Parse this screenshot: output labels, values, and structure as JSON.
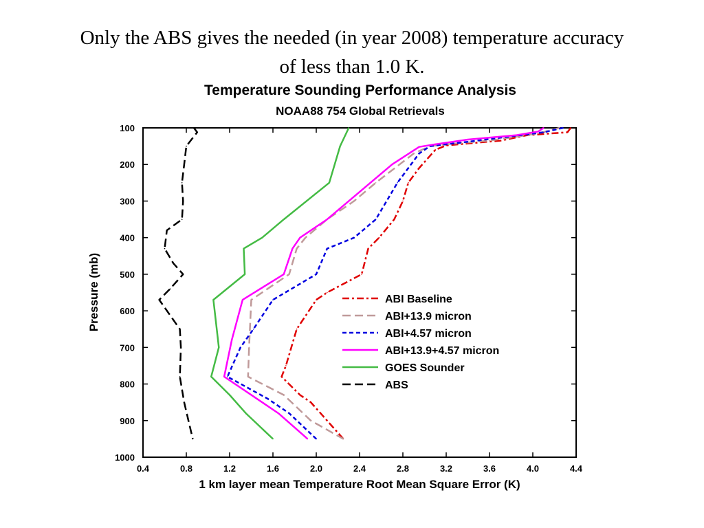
{
  "slide": {
    "title_line1": "Only the ABS gives the needed (in year 2008) temperature accuracy",
    "title_line2": "of less than 1.0 K."
  },
  "chart_data": {
    "type": "line",
    "title": "Temperature Sounding Performance Analysis",
    "subtitle": "NOAA88 754 Global Retrievals",
    "xlabel": "1 km layer mean Temperature Root Mean Square Error (K)",
    "ylabel": "Pressure (mb)",
    "xlim": [
      0.4,
      4.4
    ],
    "ylim": [
      100,
      1000
    ],
    "y_inverted": true,
    "x_ticks": [
      "0.4",
      "0.8",
      "1.2",
      "1.6",
      "2.0",
      "2.4",
      "2.8",
      "3.2",
      "3.6",
      "4.0",
      "4.4"
    ],
    "y_ticks": [
      "100",
      "200",
      "300",
      "400",
      "500",
      "600",
      "700",
      "800",
      "900",
      "1000"
    ],
    "grid": false,
    "legend_position": "lower-right",
    "series": [
      {
        "name": "ABI Baseline",
        "color": "#e00000",
        "dash": "dash-dot",
        "points": [
          [
            4.35,
            100
          ],
          [
            4.32,
            112
          ],
          [
            3.95,
            120
          ],
          [
            3.7,
            135
          ],
          [
            3.2,
            148
          ],
          [
            3.1,
            160
          ],
          [
            2.95,
            210
          ],
          [
            2.85,
            250
          ],
          [
            2.8,
            300
          ],
          [
            2.72,
            350
          ],
          [
            2.58,
            400
          ],
          [
            2.48,
            430
          ],
          [
            2.42,
            500
          ],
          [
            2.1,
            550
          ],
          [
            2.0,
            570
          ],
          [
            1.82,
            650
          ],
          [
            1.72,
            750
          ],
          [
            1.68,
            780
          ],
          [
            1.85,
            830
          ],
          [
            1.95,
            850
          ],
          [
            2.1,
            900
          ],
          [
            2.25,
            950
          ]
        ]
      },
      {
        "name": "ABI+13.9 micron",
        "color": "#c09a9a",
        "dash": "long-dash",
        "points": [
          [
            4.25,
            100
          ],
          [
            4.05,
            115
          ],
          [
            3.9,
            122
          ],
          [
            3.6,
            135
          ],
          [
            3.2,
            145
          ],
          [
            3.05,
            150
          ],
          [
            2.9,
            170
          ],
          [
            2.55,
            250
          ],
          [
            2.35,
            300
          ],
          [
            2.1,
            350
          ],
          [
            1.9,
            400
          ],
          [
            1.82,
            430
          ],
          [
            1.75,
            500
          ],
          [
            1.4,
            570
          ],
          [
            1.38,
            700
          ],
          [
            1.37,
            780
          ],
          [
            1.7,
            830
          ],
          [
            1.95,
            900
          ],
          [
            2.25,
            950
          ]
        ]
      },
      {
        "name": "ABI+4.57 micron",
        "color": "#0000e0",
        "dash": "short-dash",
        "points": [
          [
            4.28,
            100
          ],
          [
            4.1,
            112
          ],
          [
            3.75,
            125
          ],
          [
            3.4,
            138
          ],
          [
            3.05,
            150
          ],
          [
            2.95,
            170
          ],
          [
            2.75,
            250
          ],
          [
            2.55,
            350
          ],
          [
            2.35,
            400
          ],
          [
            2.1,
            430
          ],
          [
            2.0,
            500
          ],
          [
            1.6,
            570
          ],
          [
            1.42,
            650
          ],
          [
            1.3,
            700
          ],
          [
            1.18,
            780
          ],
          [
            1.55,
            840
          ],
          [
            1.75,
            880
          ],
          [
            2.0,
            950
          ]
        ]
      },
      {
        "name": "ABI+13.9+4.57 micron",
        "color": "#ff00ff",
        "dash": "solid",
        "points": [
          [
            4.1,
            100
          ],
          [
            4.05,
            110
          ],
          [
            3.85,
            120
          ],
          [
            3.4,
            132
          ],
          [
            3.1,
            145
          ],
          [
            2.95,
            152
          ],
          [
            2.7,
            200
          ],
          [
            2.5,
            250
          ],
          [
            2.1,
            350
          ],
          [
            1.85,
            400
          ],
          [
            1.78,
            430
          ],
          [
            1.7,
            500
          ],
          [
            1.32,
            570
          ],
          [
            1.22,
            680
          ],
          [
            1.15,
            780
          ],
          [
            1.45,
            840
          ],
          [
            1.65,
            880
          ],
          [
            1.92,
            950
          ]
        ]
      },
      {
        "name": "GOES Sounder",
        "color": "#44bb44",
        "dash": "solid",
        "points": [
          [
            2.3,
            100
          ],
          [
            2.22,
            150
          ],
          [
            2.12,
            250
          ],
          [
            1.7,
            350
          ],
          [
            1.5,
            400
          ],
          [
            1.33,
            430
          ],
          [
            1.34,
            500
          ],
          [
            1.05,
            570
          ],
          [
            1.1,
            700
          ],
          [
            1.03,
            780
          ],
          [
            1.2,
            830
          ],
          [
            1.35,
            880
          ],
          [
            1.6,
            950
          ]
        ]
      },
      {
        "name": "ABS",
        "color": "#000000",
        "dash": "long-dash",
        "points": [
          [
            0.87,
            100
          ],
          [
            0.9,
            112
          ],
          [
            0.8,
            150
          ],
          [
            0.78,
            200
          ],
          [
            0.76,
            250
          ],
          [
            0.77,
            300
          ],
          [
            0.76,
            350
          ],
          [
            0.62,
            380
          ],
          [
            0.6,
            430
          ],
          [
            0.68,
            470
          ],
          [
            0.77,
            500
          ],
          [
            0.65,
            540
          ],
          [
            0.55,
            570
          ],
          [
            0.74,
            650
          ],
          [
            0.75,
            700
          ],
          [
            0.74,
            780
          ],
          [
            0.78,
            850
          ],
          [
            0.82,
            900
          ],
          [
            0.86,
            950
          ]
        ]
      }
    ]
  }
}
